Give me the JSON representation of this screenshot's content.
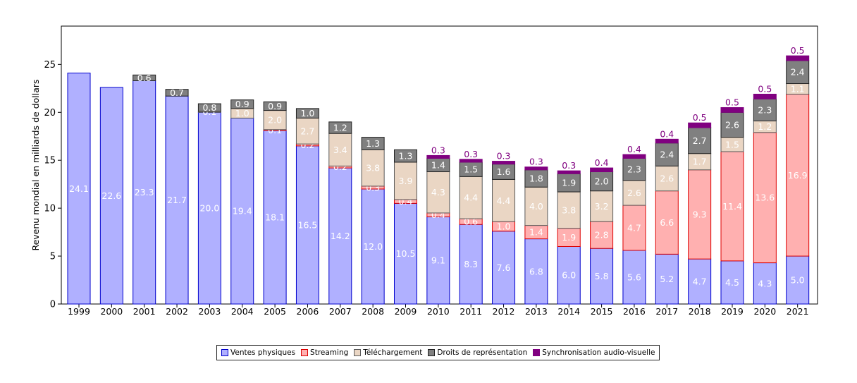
{
  "chart_data": {
    "type": "bar",
    "stacked": true,
    "title": "",
    "xlabel": "",
    "ylabel": "Revenu mondial en milliards de dollars",
    "ylim": [
      0,
      29
    ],
    "yticks": [
      0,
      5,
      10,
      15,
      20,
      25
    ],
    "categories": [
      "1999",
      "2000",
      "2001",
      "2002",
      "2003",
      "2004",
      "2005",
      "2006",
      "2007",
      "2008",
      "2009",
      "2010",
      "2011",
      "2012",
      "2013",
      "2014",
      "2015",
      "2016",
      "2017",
      "2018",
      "2019",
      "2020",
      "2021"
    ],
    "series": [
      {
        "name": "Ventes physiques",
        "color": "#b0b0ff",
        "edge": "#0000cc",
        "label_color": "#ffffff",
        "values": [
          24.1,
          22.6,
          23.3,
          21.7,
          20.0,
          19.4,
          18.1,
          16.5,
          14.2,
          12.0,
          10.5,
          9.1,
          8.3,
          7.6,
          6.8,
          6.0,
          5.8,
          5.6,
          5.2,
          4.7,
          4.5,
          4.3,
          5.0
        ]
      },
      {
        "name": "Streaming",
        "color": "#ffb0b0",
        "edge": "#dd0000",
        "label_color": "#ffffff",
        "values": [
          0,
          0,
          0,
          0,
          0,
          0,
          0.1,
          0.2,
          0.2,
          0.3,
          0.4,
          0.4,
          0.6,
          1.0,
          1.4,
          1.9,
          2.8,
          4.7,
          6.6,
          9.3,
          11.4,
          13.6,
          16.9
        ]
      },
      {
        "name": "Téléchargement",
        "color": "#ead6c4",
        "edge": "#5a5a5a",
        "label_color": "#ffffff",
        "values": [
          0,
          0,
          0,
          0,
          0.1,
          1.0,
          2.0,
          2.7,
          3.4,
          3.8,
          3.9,
          4.3,
          4.4,
          4.4,
          4.0,
          3.8,
          3.2,
          2.6,
          2.6,
          1.7,
          1.5,
          1.2,
          1.1
        ]
      },
      {
        "name": "Droits de représentation",
        "color": "#808080",
        "edge": "#222222",
        "label_color": "#ffffff",
        "values": [
          0,
          0,
          0.6,
          0.7,
          0.8,
          0.9,
          0.9,
          1.0,
          1.2,
          1.3,
          1.3,
          1.4,
          1.5,
          1.6,
          1.8,
          1.9,
          2.0,
          2.3,
          2.4,
          2.7,
          2.6,
          2.3,
          2.4
        ]
      },
      {
        "name": "Synchronisation audio-visuelle",
        "color": "#800080",
        "edge": "#800080",
        "label_color": "#800080",
        "values": [
          0,
          0,
          0,
          0,
          0,
          0,
          0,
          0,
          0,
          0,
          0,
          0.3,
          0.3,
          0.3,
          0.3,
          0.3,
          0.4,
          0.4,
          0.4,
          0.5,
          0.5,
          0.5,
          0.5
        ]
      }
    ],
    "legend_position": "bottom-center",
    "grid": false
  }
}
